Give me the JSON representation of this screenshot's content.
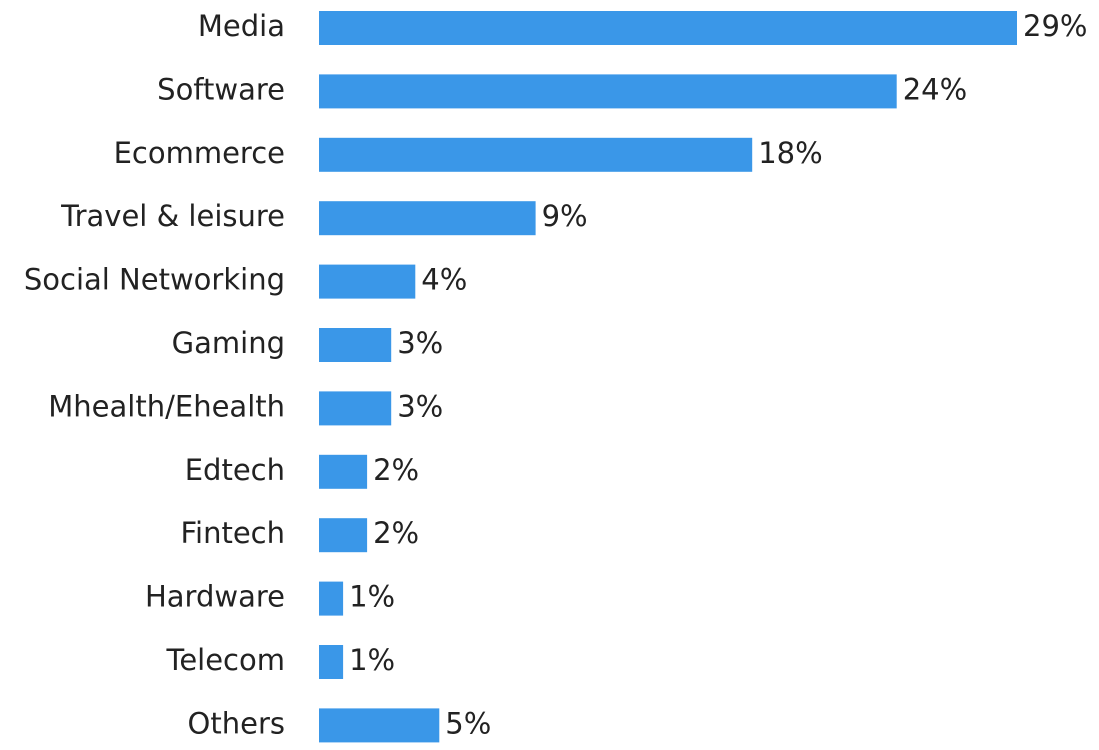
{
  "chart_data": {
    "type": "bar",
    "orientation": "horizontal",
    "categories": [
      "Media",
      "Software",
      "Ecommerce",
      "Travel & leisure",
      "Social Networking",
      "Gaming",
      "Mhealth/Ehealth",
      "Edtech",
      "Fintech",
      "Hardware",
      "Telecom",
      "Others"
    ],
    "values": [
      29,
      24,
      18,
      9,
      4,
      3,
      3,
      2,
      2,
      1,
      1,
      5
    ],
    "value_labels": [
      "29%",
      "24%",
      "18%",
      "9%",
      "4%",
      "3%",
      "3%",
      "2%",
      "2%",
      "1%",
      "1%",
      "5%"
    ],
    "xlim": [
      0,
      29
    ],
    "grid": false,
    "colors": {
      "bar": "#3a97e8"
    }
  }
}
